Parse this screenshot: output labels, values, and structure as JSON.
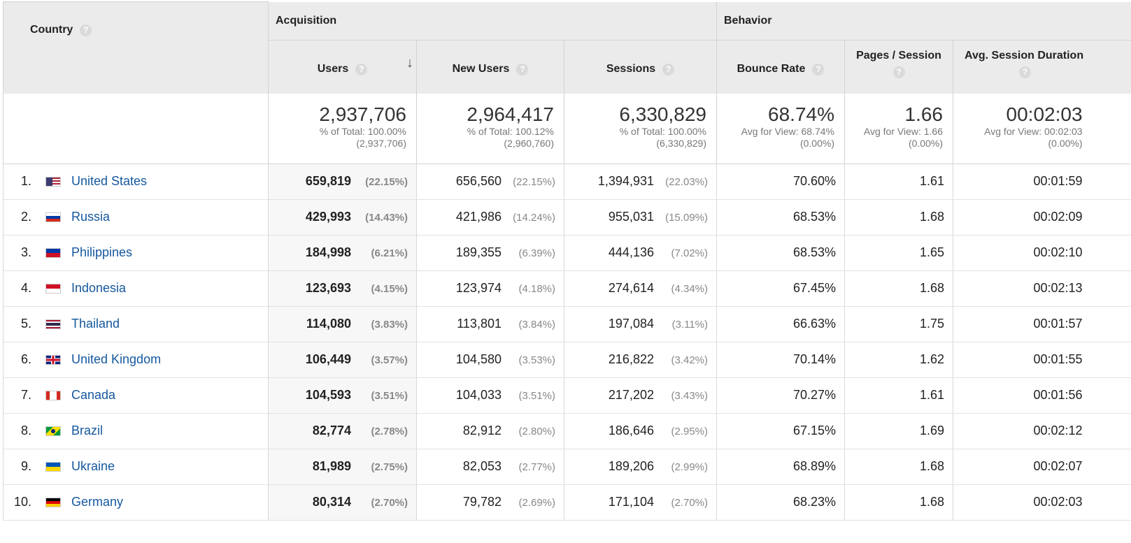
{
  "headers": {
    "country": "Country",
    "acquisition": "Acquisition",
    "behavior": "Behavior",
    "users": "Users",
    "new_users": "New Users",
    "sessions": "Sessions",
    "bounce_rate": "Bounce Rate",
    "pages_session": "Pages / Session",
    "avg_session_duration": "Avg. Session Duration",
    "help_glyph": "?",
    "sort_glyph": "↓"
  },
  "totals": {
    "users": {
      "value": "2,937,706",
      "line1": "% of Total: 100.00%",
      "line2": "(2,937,706)"
    },
    "new_users": {
      "value": "2,964,417",
      "line1": "% of Total: 100.12%",
      "line2": "(2,960,760)"
    },
    "sessions": {
      "value": "6,330,829",
      "line1": "% of Total: 100.00%",
      "line2": "(6,330,829)"
    },
    "bounce_rate": {
      "value": "68.74%",
      "line1": "Avg for View: 68.74%",
      "line2": "(0.00%)"
    },
    "pages_session": {
      "value": "1.66",
      "line1": "Avg for View: 1.66",
      "line2": "(0.00%)"
    },
    "avg_session_duration": {
      "value": "00:02:03",
      "line1": "Avg for View: 00:02:03",
      "line2": "(0.00%)"
    }
  },
  "rows": [
    {
      "index": "1.",
      "country": "United States",
      "flag": "us-flag-icon",
      "users": "659,819",
      "users_pct": "(22.15%)",
      "new_users": "656,560",
      "new_users_pct": "(22.15%)",
      "sessions": "1,394,931",
      "sessions_pct": "(22.03%)",
      "bounce_rate": "70.60%",
      "pages_session": "1.61",
      "avg_session_duration": "00:01:59"
    },
    {
      "index": "2.",
      "country": "Russia",
      "flag": "ru-flag-icon",
      "users": "429,993",
      "users_pct": "(14.43%)",
      "new_users": "421,986",
      "new_users_pct": "(14.24%)",
      "sessions": "955,031",
      "sessions_pct": "(15.09%)",
      "bounce_rate": "68.53%",
      "pages_session": "1.68",
      "avg_session_duration": "00:02:09"
    },
    {
      "index": "3.",
      "country": "Philippines",
      "flag": "ph-flag-icon",
      "users": "184,998",
      "users_pct": "(6.21%)",
      "new_users": "189,355",
      "new_users_pct": "(6.39%)",
      "sessions": "444,136",
      "sessions_pct": "(7.02%)",
      "bounce_rate": "68.53%",
      "pages_session": "1.65",
      "avg_session_duration": "00:02:10"
    },
    {
      "index": "4.",
      "country": "Indonesia",
      "flag": "id-flag-icon",
      "users": "123,693",
      "users_pct": "(4.15%)",
      "new_users": "123,974",
      "new_users_pct": "(4.18%)",
      "sessions": "274,614",
      "sessions_pct": "(4.34%)",
      "bounce_rate": "67.45%",
      "pages_session": "1.68",
      "avg_session_duration": "00:02:13"
    },
    {
      "index": "5.",
      "country": "Thailand",
      "flag": "th-flag-icon",
      "users": "114,080",
      "users_pct": "(3.83%)",
      "new_users": "113,801",
      "new_users_pct": "(3.84%)",
      "sessions": "197,084",
      "sessions_pct": "(3.11%)",
      "bounce_rate": "66.63%",
      "pages_session": "1.75",
      "avg_session_duration": "00:01:57"
    },
    {
      "index": "6.",
      "country": "United Kingdom",
      "flag": "gb-flag-icon",
      "users": "106,449",
      "users_pct": "(3.57%)",
      "new_users": "104,580",
      "new_users_pct": "(3.53%)",
      "sessions": "216,822",
      "sessions_pct": "(3.42%)",
      "bounce_rate": "70.14%",
      "pages_session": "1.62",
      "avg_session_duration": "00:01:55"
    },
    {
      "index": "7.",
      "country": "Canada",
      "flag": "ca-flag-icon",
      "users": "104,593",
      "users_pct": "(3.51%)",
      "new_users": "104,033",
      "new_users_pct": "(3.51%)",
      "sessions": "217,202",
      "sessions_pct": "(3.43%)",
      "bounce_rate": "70.27%",
      "pages_session": "1.61",
      "avg_session_duration": "00:01:56"
    },
    {
      "index": "8.",
      "country": "Brazil",
      "flag": "br-flag-icon",
      "users": "82,774",
      "users_pct": "(2.78%)",
      "new_users": "82,912",
      "new_users_pct": "(2.80%)",
      "sessions": "186,646",
      "sessions_pct": "(2.95%)",
      "bounce_rate": "67.15%",
      "pages_session": "1.69",
      "avg_session_duration": "00:02:12"
    },
    {
      "index": "9.",
      "country": "Ukraine",
      "flag": "ua-flag-icon",
      "users": "81,989",
      "users_pct": "(2.75%)",
      "new_users": "82,053",
      "new_users_pct": "(2.77%)",
      "sessions": "189,206",
      "sessions_pct": "(2.99%)",
      "bounce_rate": "68.89%",
      "pages_session": "1.68",
      "avg_session_duration": "00:02:07"
    },
    {
      "index": "10.",
      "country": "Germany",
      "flag": "de-flag-icon",
      "users": "80,314",
      "users_pct": "(2.70%)",
      "new_users": "79,782",
      "new_users_pct": "(2.69%)",
      "sessions": "171,104",
      "sessions_pct": "(2.70%)",
      "bounce_rate": "68.23%",
      "pages_session": "1.68",
      "avg_session_duration": "00:02:03"
    }
  ],
  "colors": {
    "link": "#15589e",
    "header_bg": "#ebebeb",
    "users_col_bg": "#f7f7f7",
    "muted": "#888888"
  }
}
